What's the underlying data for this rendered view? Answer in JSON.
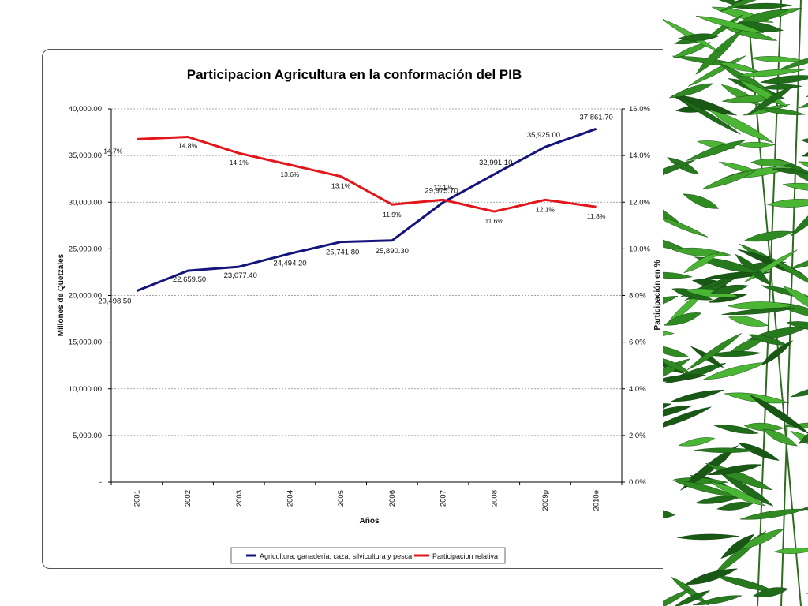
{
  "chart_data": {
    "type": "line",
    "title": "Participacion Agricultura en la conformación del PIB",
    "xlabel": "Años",
    "ylabel": "Millones de Quetzales",
    "y2label": "Participación en %",
    "categories": [
      "2001",
      "2002",
      "2003",
      "2004",
      "2005",
      "2006",
      "2007",
      "2008",
      "2009p",
      "2010e"
    ],
    "ylim": [
      0,
      40000
    ],
    "y2lim": [
      0,
      16
    ],
    "y_ticks": [
      "-",
      "5,000.00",
      "10,000.00",
      "15,000.00",
      "20,000.00",
      "25,000.00",
      "30,000.00",
      "35,000.00",
      "40,000.00"
    ],
    "y2_ticks": [
      "0.0%",
      "2.0%",
      "4.0%",
      "6.0%",
      "8.0%",
      "10.0%",
      "12.0%",
      "14.0%",
      "16.0%"
    ],
    "grid": true,
    "legend_position": "bottom",
    "series": [
      {
        "name": "Agricultura, ganadería, caza, silvicultura y pesca",
        "axis": "left",
        "color": "#14147a",
        "values": [
          20498.5,
          22659.5,
          23077.4,
          24494.2,
          25741.8,
          25890.3,
          29975.7,
          32991.1,
          35925.0,
          37861.7
        ],
        "labels": [
          "20,498.50",
          "22,659.50",
          "23,077.40",
          "24,494.20",
          "25,741.80",
          "25,890.30",
          "29,975.70",
          "32,991.10",
          "35,925.00",
          "37,861.70"
        ]
      },
      {
        "name": "Participacion relativa",
        "axis": "right",
        "color": "#e3161b",
        "values": [
          14.7,
          14.8,
          14.1,
          13.6,
          13.1,
          11.9,
          12.1,
          11.6,
          12.1,
          11.8
        ],
        "labels": [
          "14.7%",
          "14.8%",
          "14.1%",
          "13.6%",
          "13.1%",
          "11.9%",
          "12.1%",
          "11.6%",
          "12.1%",
          "11.8%"
        ]
      }
    ]
  },
  "decoration": {
    "side_image": "bamboo-leaves"
  }
}
